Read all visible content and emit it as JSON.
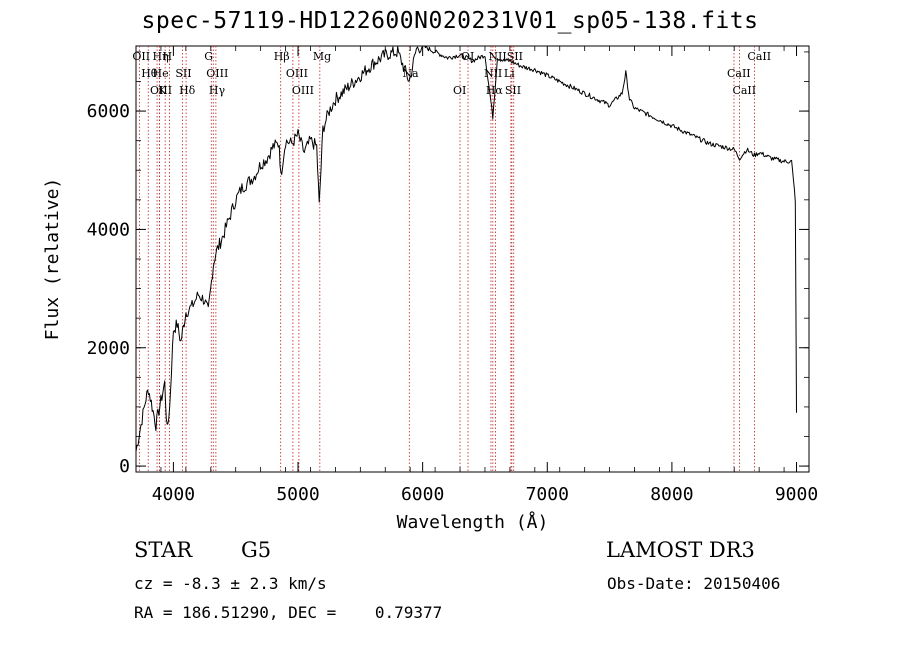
{
  "title": "spec-57119-HD122600N020231V01_sp05-138.fits",
  "chart_data": {
    "type": "line",
    "title": "spec-57119-HD122600N020231V01_sp05-138.fits",
    "xlabel": "Wavelength (Å)",
    "ylabel": "Flux (relative)",
    "xlim": [
      3700,
      9100
    ],
    "ylim": [
      -100,
      7100
    ],
    "xticks": [
      4000,
      5000,
      6000,
      7000,
      8000,
      9000
    ],
    "yticks": [
      0,
      2000,
      4000,
      6000
    ],
    "x": [
      3700,
      3740,
      3780,
      3800,
      3830,
      3860,
      3900,
      3930,
      3950,
      3970,
      4000,
      4030,
      4060,
      4080,
      4100,
      4150,
      4200,
      4250,
      4280,
      4300,
      4320,
      4340,
      4400,
      4450,
      4500,
      4550,
      4600,
      4650,
      4700,
      4750,
      4800,
      4850,
      4861,
      4900,
      4950,
      5000,
      5050,
      5100,
      5150,
      5170,
      5200,
      5250,
      5300,
      5400,
      5500,
      5600,
      5700,
      5800,
      5893,
      5950,
      6000,
      6100,
      6200,
      6300,
      6400,
      6500,
      6563,
      6600,
      6650,
      6700,
      6750,
      6800,
      6900,
      7000,
      7100,
      7200,
      7300,
      7400,
      7500,
      7600,
      7630,
      7660,
      7700,
      7800,
      7900,
      8000,
      8100,
      8200,
      8300,
      8400,
      8500,
      8542,
      8600,
      8662,
      8700,
      8800,
      8900,
      8960,
      8990,
      9000
    ],
    "y": [
      250,
      700,
      1150,
      1300,
      1000,
      700,
      1100,
      1400,
      600,
      1000,
      2300,
      2400,
      2100,
      2350,
      2600,
      2700,
      2900,
      2800,
      2600,
      3000,
      3400,
      3600,
      3900,
      4200,
      4500,
      4700,
      4800,
      4900,
      5100,
      5200,
      5400,
      5450,
      4900,
      5500,
      5450,
      5600,
      5300,
      5500,
      5400,
      4400,
      5700,
      6000,
      6200,
      6400,
      6600,
      6800,
      6950,
      7000,
      6500,
      7050,
      7100,
      7000,
      6900,
      6950,
      6850,
      6950,
      5900,
      6900,
      6850,
      6850,
      6800,
      6750,
      6700,
      6600,
      6500,
      6400,
      6300,
      6200,
      6100,
      6300,
      6650,
      6200,
      6050,
      5950,
      5850,
      5750,
      5650,
      5550,
      5450,
      5400,
      5350,
      5200,
      5350,
      5250,
      5300,
      5200,
      5150,
      5150,
      4500,
      900
    ],
    "lines": [
      {
        "name": "OII",
        "wave": 3727
      },
      {
        "name": "Hθ",
        "wave": 3798
      },
      {
        "name": "OIII",
        "wave": 3869
      },
      {
        "name": "Hη",
        "wave": 3889
      },
      {
        "name": "He",
        "wave": 3889
      },
      {
        "name": "K",
        "wave": 3934
      },
      {
        "name": "H",
        "wave": 3969
      },
      {
        "name": "SII",
        "wave": 4072
      },
      {
        "name": "Hδ",
        "wave": 4102
      },
      {
        "name": "G",
        "wave": 4304
      },
      {
        "name": "OIII",
        "wave": 4320
      },
      {
        "name": "Hγ",
        "wave": 4341
      },
      {
        "name": "Hβ",
        "wave": 4861
      },
      {
        "name": "OIII",
        "wave": 4959
      },
      {
        "name": "OIII",
        "wave": 5007
      },
      {
        "name": "Mg",
        "wave": 5175
      },
      {
        "name": "Na",
        "wave": 5893
      },
      {
        "name": "OI",
        "wave": 6300
      },
      {
        "name": "OI",
        "wave": 6364
      },
      {
        "name": "NII",
        "wave": 6548
      },
      {
        "name": "Hα",
        "wave": 6563
      },
      {
        "name": "NII",
        "wave": 6584
      },
      {
        "name": "Li",
        "wave": 6708
      },
      {
        "name": "SII",
        "wave": 6716
      },
      {
        "name": "SII",
        "wave": 6731
      },
      {
        "name": "CaII",
        "wave": 8498
      },
      {
        "name": "CaII",
        "wave": 8542
      },
      {
        "name": "CaII",
        "wave": 8662
      }
    ]
  },
  "info": {
    "class": "STAR",
    "subclass": "G5",
    "survey": "LAMOST DR3",
    "cz": "cz = -8.3 ± 2.3 km/s",
    "obs_date": "Obs-Date: 20150406",
    "coords": "RA = 186.51290, DEC =    0.79377"
  }
}
